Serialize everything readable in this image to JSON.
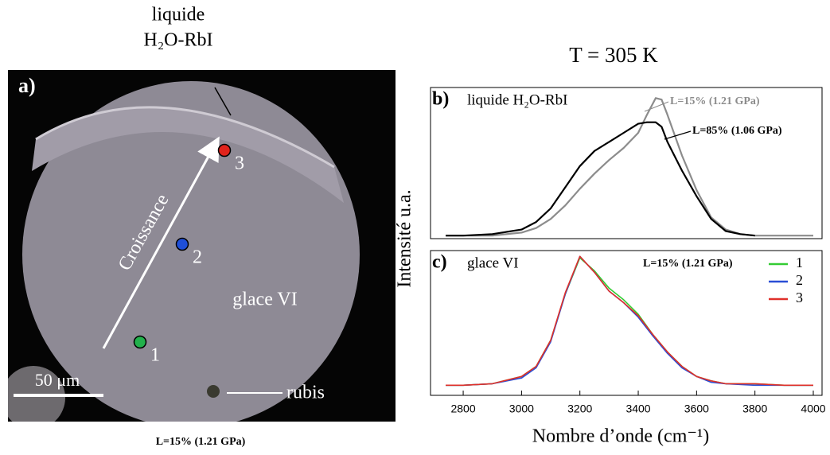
{
  "figure": {
    "panel_label": "a)",
    "liquid_label": [
      "liquide",
      "H₂O-RbI"
    ],
    "growth": "Croissance",
    "phase": "glace VI",
    "scale": "50 μm",
    "ruby": "rubis",
    "caption": "L=15% (1.21 GPa)",
    "points": [
      {
        "label": "1",
        "color": "#22b14c"
      },
      {
        "label": "2",
        "color": "#1f4fd8"
      },
      {
        "label": "3",
        "color": "#e0231b"
      }
    ]
  },
  "chart_data": [
    {
      "type": "line",
      "title": "T = 305 K",
      "panel_label": "b)",
      "annotation": "liquide H₂O-RbI",
      "ylabel": "Intensité u.a.",
      "x": [
        2740,
        2800,
        2900,
        3000,
        3050,
        3100,
        3150,
        3200,
        3250,
        3300,
        3350,
        3400,
        3430,
        3460,
        3480,
        3500,
        3550,
        3600,
        3650,
        3700,
        3750,
        3800,
        3900,
        4000
      ],
      "xlim": [
        2688,
        4030
      ],
      "ylim": [
        0,
        1
      ],
      "series": [
        {
          "name": "L=15% (1.21 GPa)",
          "color": "#8c8c8c",
          "values": [
            0.02,
            0.02,
            0.02,
            0.04,
            0.07,
            0.13,
            0.22,
            0.33,
            0.43,
            0.52,
            0.6,
            0.7,
            0.82,
            0.93,
            0.92,
            0.82,
            0.55,
            0.32,
            0.14,
            0.06,
            0.03,
            0.02,
            0.02,
            0.02
          ]
        },
        {
          "name": "L=85% (1.06 GPa)",
          "color": "#000000",
          "values": [
            0.02,
            0.02,
            0.03,
            0.06,
            0.11,
            0.2,
            0.34,
            0.48,
            0.58,
            0.64,
            0.7,
            0.76,
            0.77,
            0.77,
            0.74,
            0.64,
            0.45,
            0.28,
            0.13,
            0.05,
            0.03,
            0.02,
            null,
            null
          ]
        }
      ]
    },
    {
      "type": "line",
      "panel_label": "c)",
      "annotation": "glace VI",
      "note": "L=15% (1.21 GPa)",
      "xlabel": "Nombre d’onde (cm⁻¹)",
      "x": [
        2740,
        2800,
        2900,
        3000,
        3050,
        3100,
        3150,
        3200,
        3250,
        3300,
        3350,
        3400,
        3450,
        3500,
        3550,
        3600,
        3650,
        3700,
        3800,
        3900,
        4000
      ],
      "xlim": [
        2688,
        4030
      ],
      "ylim": [
        0,
        1
      ],
      "xticks": [
        2800,
        3000,
        3200,
        3400,
        3600,
        3800,
        4000
      ],
      "series": [
        {
          "name": "1",
          "color": "#33cc33",
          "values": [
            0.07,
            0.07,
            0.08,
            0.13,
            0.2,
            0.38,
            0.7,
            0.95,
            0.86,
            0.74,
            0.66,
            0.56,
            0.42,
            0.3,
            0.2,
            0.13,
            0.1,
            0.08,
            0.08,
            0.07,
            0.07
          ]
        },
        {
          "name": "2",
          "color": "#2a4fd6",
          "values": [
            0.07,
            0.07,
            0.08,
            0.12,
            0.19,
            0.37,
            0.7,
            0.96,
            0.85,
            0.72,
            0.64,
            0.54,
            0.41,
            0.29,
            0.19,
            0.13,
            0.09,
            0.08,
            0.07,
            0.07,
            0.07
          ]
        },
        {
          "name": "3",
          "color": "#e0302a",
          "values": [
            0.07,
            0.07,
            0.08,
            0.13,
            0.2,
            0.38,
            0.71,
            0.96,
            0.85,
            0.72,
            0.64,
            0.55,
            0.42,
            0.3,
            0.2,
            0.13,
            0.1,
            0.08,
            0.08,
            0.07,
            0.07
          ]
        }
      ]
    }
  ]
}
